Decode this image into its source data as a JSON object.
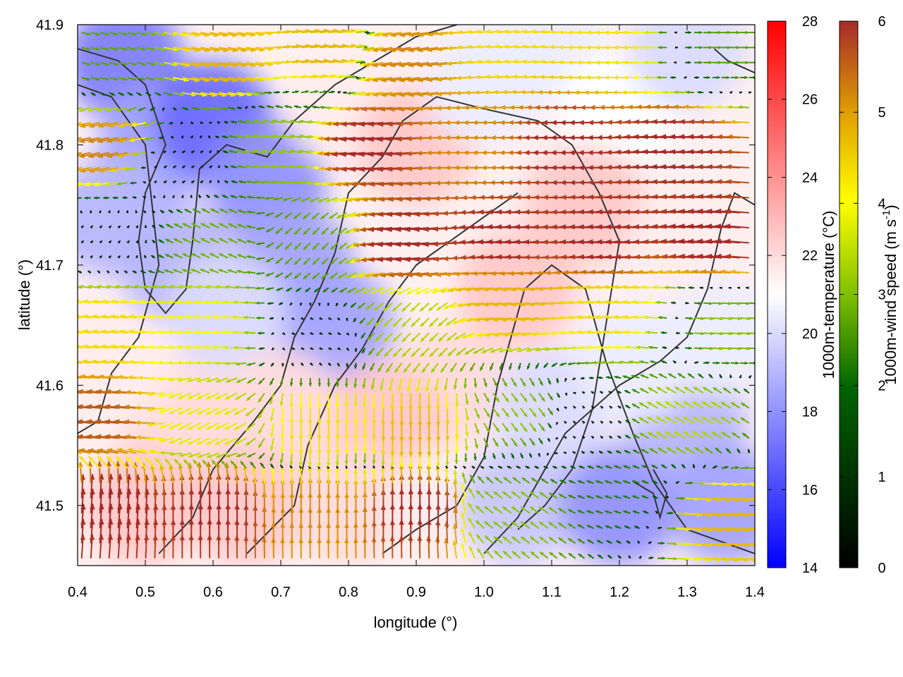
{
  "chart_data": {
    "type": "heatmap",
    "title": "",
    "xlabel": "longitude (°)",
    "ylabel": "latitude (°)",
    "xlim": [
      0.4,
      1.4
    ],
    "ylim": [
      41.45,
      41.9
    ],
    "x_ticks": [
      "0.4",
      "0.5",
      "0.6",
      "0.7",
      "0.8",
      "0.9",
      "1.0",
      "1.1",
      "1.2",
      "1.3",
      "1.4"
    ],
    "y_ticks": [
      "41.5",
      "41.6",
      "41.7",
      "41.8",
      "41.9"
    ],
    "temperature_colorbar": {
      "label": "1000m-temperature (°C)",
      "range": [
        14,
        28
      ],
      "ticks": [
        "14",
        "16",
        "18",
        "20",
        "22",
        "24",
        "26",
        "28"
      ],
      "colors": [
        "#0000ff",
        "#ffffff",
        "#ff0000"
      ]
    },
    "wind_colorbar": {
      "label_main": "1000m-wind speed (m s",
      "label_sup": "-1",
      "label_end": ")",
      "range": [
        0,
        6
      ],
      "ticks": [
        "0",
        "1",
        "2",
        "3",
        "4",
        "5",
        "6"
      ],
      "colors": [
        "#000000",
        "#006400",
        "#80c000",
        "#ffff00",
        "#e0a000",
        "#a52a2a"
      ]
    },
    "temperature_field": [
      {
        "x": 0.47,
        "y": 41.87,
        "t": 17.5
      },
      {
        "x": 0.52,
        "y": 41.8,
        "t": 18.5
      },
      {
        "x": 0.6,
        "y": 41.82,
        "t": 17.0
      },
      {
        "x": 0.45,
        "y": 41.74,
        "t": 19.0
      },
      {
        "x": 0.55,
        "y": 41.7,
        "t": 19.0
      },
      {
        "x": 0.68,
        "y": 41.77,
        "t": 18.0
      },
      {
        "x": 0.72,
        "y": 41.7,
        "t": 18.5
      },
      {
        "x": 0.78,
        "y": 41.65,
        "t": 18.5
      },
      {
        "x": 0.62,
        "y": 41.66,
        "t": 20.0
      },
      {
        "x": 0.8,
        "y": 41.83,
        "t": 21.5
      },
      {
        "x": 0.9,
        "y": 41.8,
        "t": 22.5
      },
      {
        "x": 1.0,
        "y": 41.85,
        "t": 20.5
      },
      {
        "x": 1.1,
        "y": 41.88,
        "t": 20.5
      },
      {
        "x": 1.2,
        "y": 41.83,
        "t": 21.0
      },
      {
        "x": 1.3,
        "y": 41.88,
        "t": 20.0
      },
      {
        "x": 1.15,
        "y": 41.75,
        "t": 22.5
      },
      {
        "x": 1.3,
        "y": 41.72,
        "t": 21.5
      },
      {
        "x": 1.05,
        "y": 41.68,
        "t": 22.5
      },
      {
        "x": 0.95,
        "y": 41.6,
        "t": 22.0
      },
      {
        "x": 0.85,
        "y": 41.57,
        "t": 22.5
      },
      {
        "x": 0.7,
        "y": 41.58,
        "t": 22.0
      },
      {
        "x": 0.55,
        "y": 41.57,
        "t": 22.0
      },
      {
        "x": 0.45,
        "y": 41.62,
        "t": 21.5
      },
      {
        "x": 0.5,
        "y": 41.5,
        "t": 22.5
      },
      {
        "x": 0.65,
        "y": 41.5,
        "t": 22.5
      },
      {
        "x": 0.8,
        "y": 41.5,
        "t": 22.0
      },
      {
        "x": 0.95,
        "y": 41.5,
        "t": 21.5
      },
      {
        "x": 1.1,
        "y": 41.58,
        "t": 20.0
      },
      {
        "x": 1.05,
        "y": 41.5,
        "t": 19.5
      },
      {
        "x": 1.2,
        "y": 41.5,
        "t": 18.0
      },
      {
        "x": 1.3,
        "y": 41.57,
        "t": 19.0
      },
      {
        "x": 1.36,
        "y": 41.5,
        "t": 18.5
      },
      {
        "x": 1.35,
        "y": 41.64,
        "t": 20.5
      },
      {
        "x": 1.22,
        "y": 41.62,
        "t": 20.5
      }
    ],
    "wind_field": [
      {
        "x": 0.45,
        "y": 41.87,
        "u": 2.0,
        "v": -0.5
      },
      {
        "x": 0.6,
        "y": 41.87,
        "u": 4.5,
        "v": -0.8
      },
      {
        "x": 0.75,
        "y": 41.88,
        "u": 4.5,
        "v": 0.5
      },
      {
        "x": 0.9,
        "y": 41.87,
        "u": -5.0,
        "v": -0.8
      },
      {
        "x": 1.05,
        "y": 41.88,
        "u": -4.0,
        "v": 0.3
      },
      {
        "x": 1.2,
        "y": 41.88,
        "u": -4.0,
        "v": 0.0
      },
      {
        "x": 1.35,
        "y": 41.88,
        "u": 2.0,
        "v": 0.0
      },
      {
        "x": 0.45,
        "y": 41.8,
        "u": -5.0,
        "v": -1.0
      },
      {
        "x": 0.55,
        "y": 41.78,
        "u": 0.5,
        "v": 0.3
      },
      {
        "x": 0.7,
        "y": 41.8,
        "u": -2.5,
        "v": 0.5
      },
      {
        "x": 0.85,
        "y": 41.8,
        "u": -6.0,
        "v": -0.5
      },
      {
        "x": 1.0,
        "y": 41.8,
        "u": -5.0,
        "v": 0.0
      },
      {
        "x": 1.15,
        "y": 41.8,
        "u": -6.0,
        "v": 0.0
      },
      {
        "x": 1.3,
        "y": 41.8,
        "u": -6.0,
        "v": 0.3
      },
      {
        "x": 0.45,
        "y": 41.72,
        "u": 0.3,
        "v": 0.3
      },
      {
        "x": 0.6,
        "y": 41.72,
        "u": -2.0,
        "v": 1.0
      },
      {
        "x": 0.75,
        "y": 41.72,
        "u": -1.5,
        "v": -1.5
      },
      {
        "x": 0.9,
        "y": 41.72,
        "u": -6.0,
        "v": -0.5
      },
      {
        "x": 1.05,
        "y": 41.72,
        "u": -6.0,
        "v": 0.3
      },
      {
        "x": 1.2,
        "y": 41.72,
        "u": -6.0,
        "v": 0.3
      },
      {
        "x": 1.35,
        "y": 41.72,
        "u": -6.0,
        "v": 0.5
      },
      {
        "x": 0.45,
        "y": 41.65,
        "u": -4.0,
        "v": 0.5
      },
      {
        "x": 0.6,
        "y": 41.65,
        "u": -3.5,
        "v": 0.3
      },
      {
        "x": 0.75,
        "y": 41.64,
        "u": 0.5,
        "v": -0.2
      },
      {
        "x": 0.9,
        "y": 41.65,
        "u": -2.0,
        "v": -2.0
      },
      {
        "x": 1.05,
        "y": 41.67,
        "u": -4.5,
        "v": -0.5
      },
      {
        "x": 1.2,
        "y": 41.66,
        "u": -4.0,
        "v": 0.3
      },
      {
        "x": 1.35,
        "y": 41.65,
        "u": 2.5,
        "v": -0.2
      },
      {
        "x": 0.45,
        "y": 41.57,
        "u": -5.5,
        "v": 0.5
      },
      {
        "x": 0.6,
        "y": 41.57,
        "u": -3.0,
        "v": -1.5
      },
      {
        "x": 0.75,
        "y": 41.57,
        "u": 0.0,
        "v": -4.0
      },
      {
        "x": 0.9,
        "y": 41.57,
        "u": 0.0,
        "v": -4.5
      },
      {
        "x": 1.05,
        "y": 41.58,
        "u": 1.5,
        "v": -2.0
      },
      {
        "x": 1.15,
        "y": 41.57,
        "u": -0.3,
        "v": 0.3
      },
      {
        "x": 1.3,
        "y": 41.57,
        "u": -2.5,
        "v": 1.5
      },
      {
        "x": 0.45,
        "y": 41.49,
        "u": 0.5,
        "v": 6.0
      },
      {
        "x": 0.6,
        "y": 41.49,
        "u": 0.0,
        "v": 6.0
      },
      {
        "x": 0.75,
        "y": 41.49,
        "u": 0.0,
        "v": 5.0
      },
      {
        "x": 0.9,
        "y": 41.49,
        "u": 0.0,
        "v": 6.0
      },
      {
        "x": 1.05,
        "y": 41.49,
        "u": -2.0,
        "v": 1.5
      },
      {
        "x": 1.2,
        "y": 41.51,
        "u": -1.5,
        "v": 0.5
      },
      {
        "x": 1.35,
        "y": 41.49,
        "u": 4.5,
        "v": -0.5
      }
    ],
    "contours": [
      [
        [
          0.4,
          41.88
        ],
        [
          0.46,
          41.87
        ],
        [
          0.5,
          41.85
        ],
        [
          0.53,
          41.8
        ],
        [
          0.5,
          41.76
        ],
        [
          0.49,
          41.72
        ],
        [
          0.5,
          41.68
        ],
        [
          0.53,
          41.66
        ],
        [
          0.56,
          41.68
        ],
        [
          0.57,
          41.72
        ],
        [
          0.58,
          41.78
        ],
        [
          0.62,
          41.8
        ],
        [
          0.68,
          41.79
        ],
        [
          0.72,
          41.82
        ],
        [
          0.78,
          41.85
        ],
        [
          0.84,
          41.87
        ],
        [
          0.9,
          41.89
        ],
        [
          0.96,
          41.9
        ]
      ],
      [
        [
          0.4,
          41.85
        ],
        [
          0.45,
          41.84
        ],
        [
          0.5,
          41.8
        ],
        [
          0.52,
          41.7
        ],
        [
          0.49,
          41.64
        ],
        [
          0.45,
          41.61
        ],
        [
          0.43,
          41.57
        ],
        [
          0.4,
          41.56
        ]
      ],
      [
        [
          0.52,
          41.46
        ],
        [
          0.57,
          41.49
        ],
        [
          0.6,
          41.53
        ],
        [
          0.66,
          41.57
        ],
        [
          0.7,
          41.6
        ],
        [
          0.72,
          41.64
        ],
        [
          0.75,
          41.67
        ],
        [
          0.78,
          41.71
        ],
        [
          0.8,
          41.76
        ],
        [
          0.85,
          41.79
        ],
        [
          0.88,
          41.82
        ],
        [
          0.93,
          41.84
        ],
        [
          1.0,
          41.83
        ],
        [
          1.08,
          41.82
        ],
        [
          1.13,
          41.8
        ],
        [
          1.17,
          41.76
        ],
        [
          1.2,
          41.72
        ],
        [
          1.18,
          41.65
        ],
        [
          1.16,
          41.58
        ],
        [
          1.13,
          41.53
        ],
        [
          1.09,
          41.5
        ],
        [
          1.05,
          41.48
        ]
      ],
      [
        [
          0.65,
          41.46
        ],
        [
          0.72,
          41.5
        ],
        [
          0.74,
          41.55
        ],
        [
          0.78,
          41.6
        ],
        [
          0.82,
          41.63
        ],
        [
          0.86,
          41.67
        ],
        [
          0.9,
          41.7
        ],
        [
          0.95,
          41.72
        ],
        [
          1.0,
          41.74
        ],
        [
          1.05,
          41.76
        ]
      ],
      [
        [
          0.85,
          41.46
        ],
        [
          0.9,
          41.48
        ],
        [
          0.96,
          41.5
        ],
        [
          1.0,
          41.54
        ],
        [
          1.02,
          41.6
        ],
        [
          1.04,
          41.64
        ],
        [
          1.06,
          41.68
        ],
        [
          1.1,
          41.7
        ],
        [
          1.15,
          41.68
        ],
        [
          1.18,
          41.62
        ],
        [
          1.22,
          41.56
        ],
        [
          1.25,
          41.52
        ],
        [
          1.3,
          41.48
        ],
        [
          1.35,
          41.47
        ],
        [
          1.4,
          41.46
        ]
      ],
      [
        [
          1.22,
          41.52
        ],
        [
          1.25,
          41.51
        ],
        [
          1.26,
          41.49
        ],
        [
          1.27,
          41.51
        ],
        [
          1.25,
          41.53
        ]
      ],
      [
        [
          1.0,
          41.46
        ],
        [
          1.05,
          41.49
        ],
        [
          1.12,
          41.56
        ],
        [
          1.2,
          41.6
        ],
        [
          1.26,
          41.62
        ],
        [
          1.3,
          41.64
        ],
        [
          1.33,
          41.68
        ],
        [
          1.35,
          41.73
        ],
        [
          1.37,
          41.76
        ],
        [
          1.4,
          41.75
        ]
      ],
      [
        [
          1.34,
          41.88
        ],
        [
          1.36,
          41.87
        ],
        [
          1.4,
          41.86
        ]
      ]
    ]
  }
}
